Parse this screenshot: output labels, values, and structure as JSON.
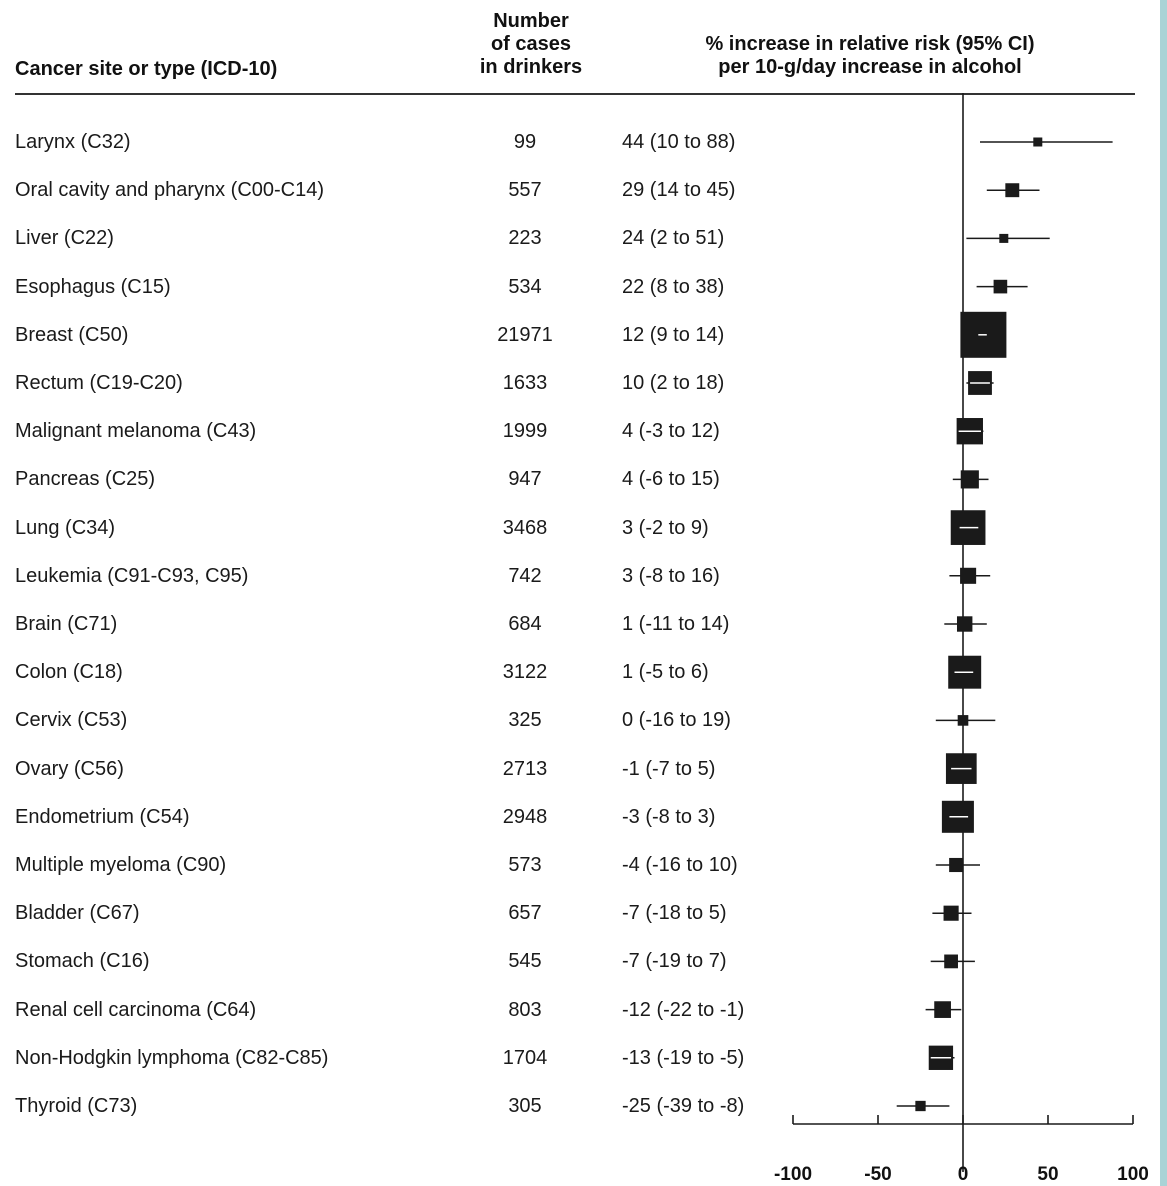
{
  "headers": {
    "site": "Cancer site or type (ICD-10)",
    "cases_line1": "Number",
    "cases_line2": "of cases",
    "cases_line3": "in drinkers",
    "ci_line1": "% increase in relative risk (95% CI)",
    "ci_line2": "per 10-g/day increase in alcohol"
  },
  "chart_data": {
    "type": "forest",
    "title": "",
    "xlabel": "",
    "ylabel": "",
    "xlim": [
      -100,
      100
    ],
    "xticks": [
      -100,
      -50,
      0,
      50,
      100
    ],
    "reference_line": 0,
    "rows": [
      {
        "site": "Larynx (C32)",
        "cases": "99",
        "rr_text": "44 (10 to 88)",
        "est": 44,
        "lo": 10,
        "hi": 88
      },
      {
        "site": "Oral cavity and pharynx (C00-C14)",
        "cases": "557",
        "rr_text": "29 (14 to 45)",
        "est": 29,
        "lo": 14,
        "hi": 45
      },
      {
        "site": "Liver (C22)",
        "cases": "223",
        "rr_text": "24 (2 to 51)",
        "est": 24,
        "lo": 2,
        "hi": 51
      },
      {
        "site": "Esophagus (C15)",
        "cases": "534",
        "rr_text": "22 (8 to 38)",
        "est": 22,
        "lo": 8,
        "hi": 38
      },
      {
        "site": "Breast (C50)",
        "cases": "21971",
        "rr_text": "12 (9 to 14)",
        "est": 12,
        "lo": 9,
        "hi": 14
      },
      {
        "site": "Rectum (C19-C20)",
        "cases": "1633",
        "rr_text": "10 (2 to 18)",
        "est": 10,
        "lo": 2,
        "hi": 18
      },
      {
        "site": "Malignant melanoma (C43)",
        "cases": "1999",
        "rr_text": "4 (-3 to 12)",
        "est": 4,
        "lo": -3,
        "hi": 12
      },
      {
        "site": "Pancreas (C25)",
        "cases": "947",
        "rr_text": "4 (-6 to 15)",
        "est": 4,
        "lo": -6,
        "hi": 15
      },
      {
        "site": "Lung (C34)",
        "cases": "3468",
        "rr_text": "3 (-2 to 9)",
        "est": 3,
        "lo": -2,
        "hi": 9
      },
      {
        "site": "Leukemia (C91-C93, C95)",
        "cases": "742",
        "rr_text": "3 (-8 to 16)",
        "est": 3,
        "lo": -8,
        "hi": 16
      },
      {
        "site": "Brain (C71)",
        "cases": "684",
        "rr_text": "1 (-11 to 14)",
        "est": 1,
        "lo": -11,
        "hi": 14
      },
      {
        "site": "Colon (C18)",
        "cases": "3122",
        "rr_text": "1 (-5 to 6)",
        "est": 1,
        "lo": -5,
        "hi": 6
      },
      {
        "site": "Cervix (C53)",
        "cases": "325",
        "rr_text": "0 (-16 to 19)",
        "est": 0,
        "lo": -16,
        "hi": 19
      },
      {
        "site": "Ovary (C56)",
        "cases": "2713",
        "rr_text": "-1 (-7 to 5)",
        "est": -1,
        "lo": -7,
        "hi": 5
      },
      {
        "site": "Endometrium (C54)",
        "cases": "2948",
        "rr_text": "-3 (-8 to 3)",
        "est": -3,
        "lo": -8,
        "hi": 3
      },
      {
        "site": "Multiple myeloma (C90)",
        "cases": "573",
        "rr_text": "-4 (-16 to 10)",
        "est": -4,
        "lo": -16,
        "hi": 10
      },
      {
        "site": "Bladder (C67)",
        "cases": "657",
        "rr_text": "-7 (-18 to 5)",
        "est": -7,
        "lo": -18,
        "hi": 5
      },
      {
        "site": "Stomach (C16)",
        "cases": "545",
        "rr_text": "-7 (-19 to 7)",
        "est": -7,
        "lo": -19,
        "hi": 7
      },
      {
        "site": "Renal cell carcinoma (C64)",
        "cases": "803",
        "rr_text": "-12 (-22 to -1)",
        "est": -12,
        "lo": -22,
        "hi": -1
      },
      {
        "site": "Non-Hodgkin lymphoma (C82-C85)",
        "cases": "1704",
        "rr_text": "-13 (-19 to -5)",
        "est": -13,
        "lo": -19,
        "hi": -5
      },
      {
        "site": "Thyroid (C73)",
        "cases": "305",
        "rr_text": "-25 (-39 to -8)",
        "est": -25,
        "lo": -39,
        "hi": -8
      }
    ],
    "colors": {
      "marker": "#1a1a1a",
      "line": "#1a1a1a",
      "inner_ci": "#ffffff"
    }
  }
}
